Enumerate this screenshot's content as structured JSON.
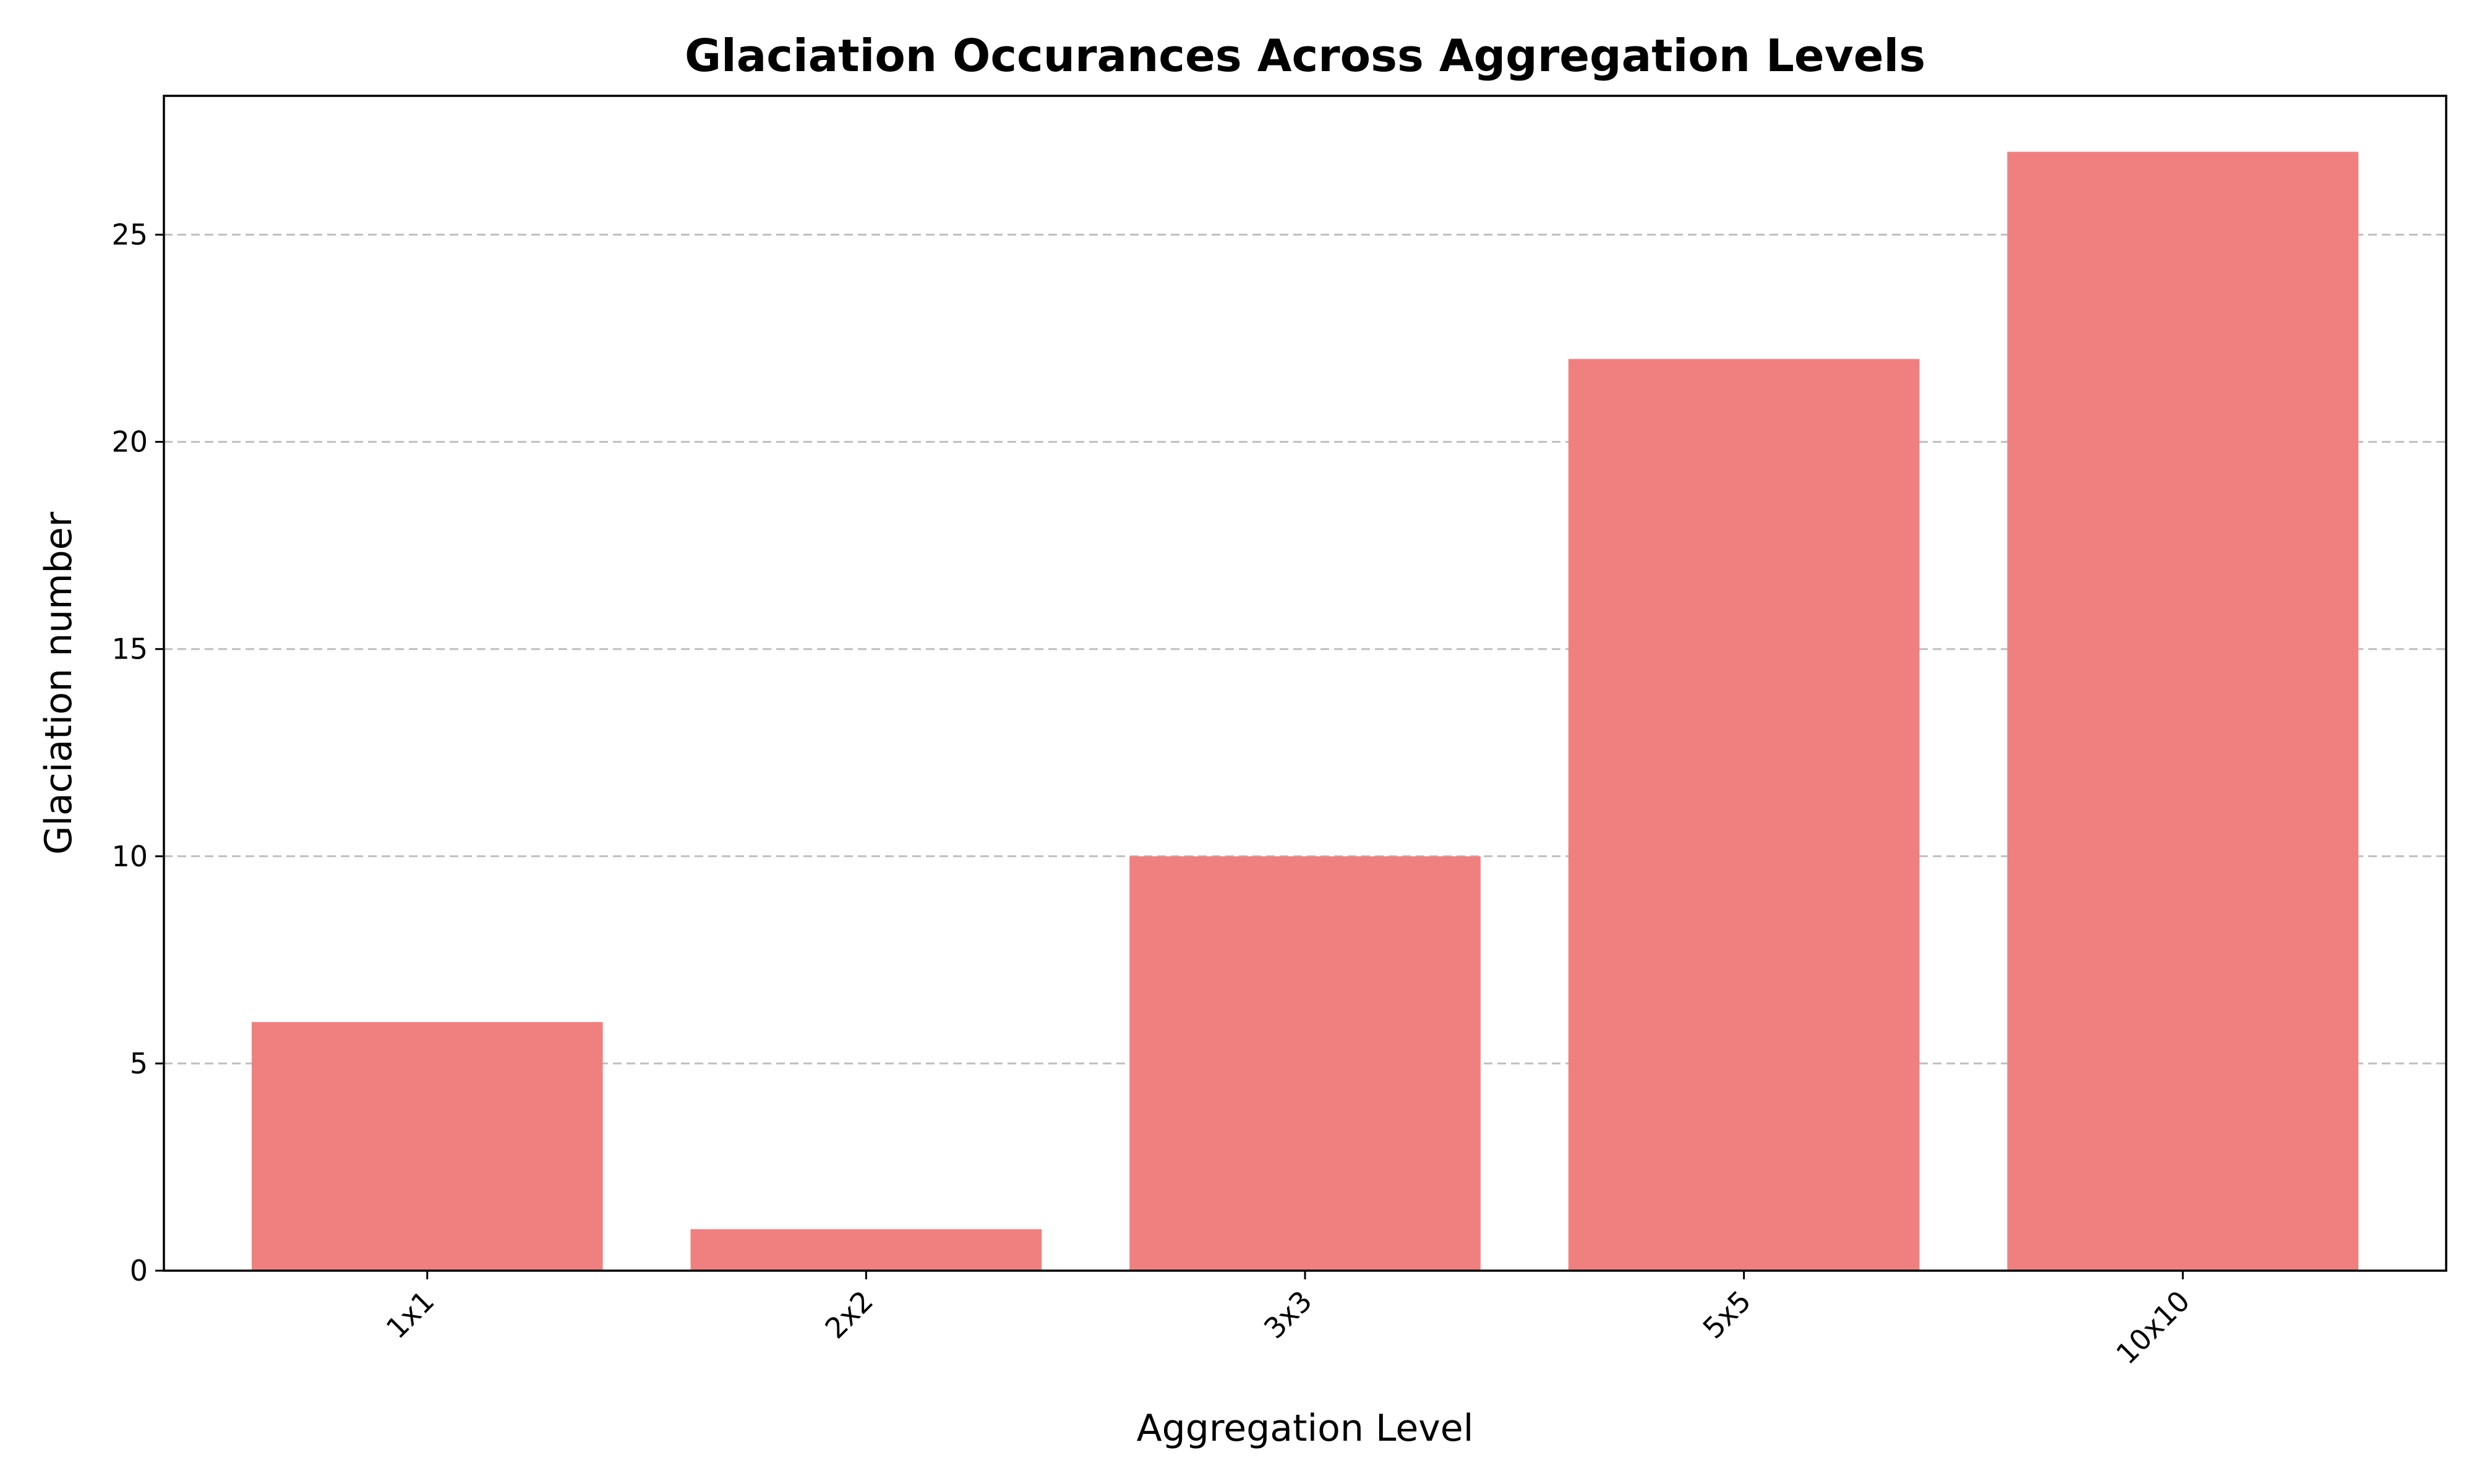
{
  "chart_data": {
    "type": "bar",
    "title": "Glaciation Occurances Across Aggregation Levels",
    "xlabel": "Aggregation Level",
    "ylabel": "Glaciation number",
    "categories": [
      "1x1",
      "2x2",
      "3x3",
      "5x5",
      "10x10"
    ],
    "values": [
      6,
      1,
      10,
      22,
      27
    ],
    "ylim": [
      0,
      28.35
    ],
    "yticks": [
      0,
      5,
      10,
      15,
      20,
      25
    ],
    "grid": "y-dashed",
    "bar_color": "#f08080",
    "xtick_rotation": 45
  }
}
